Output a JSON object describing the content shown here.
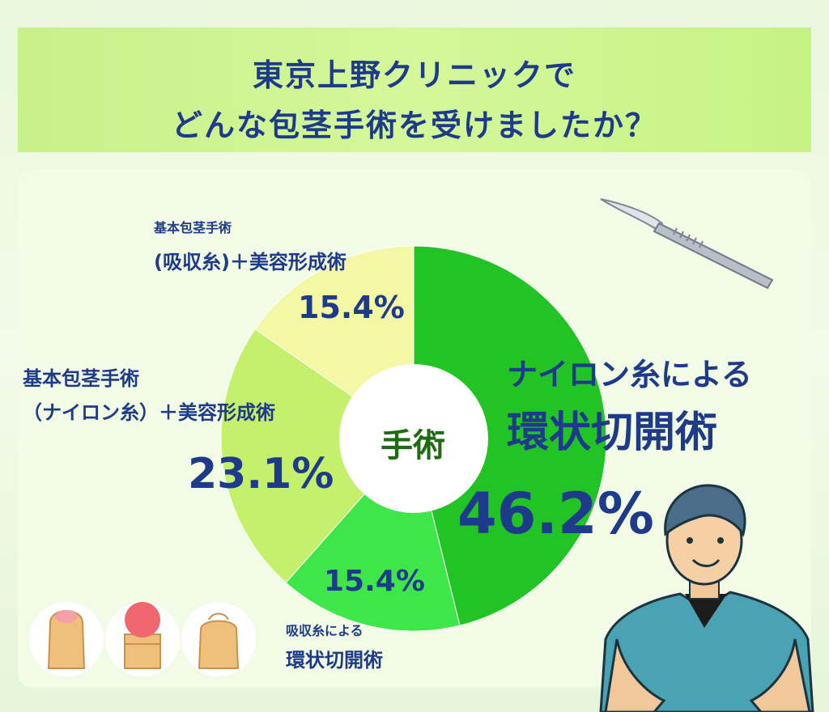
{
  "title": {
    "line1": "東京上野クリニックで",
    "line2": "どんな包茎手術を受けましたか？"
  },
  "chart_data": {
    "type": "pie",
    "center_label": "手術",
    "slices": [
      {
        "label_lines": [
          "ナイロン糸による",
          "環状切開術"
        ],
        "value": 46.2,
        "display": "46.2%",
        "color": "#22c325"
      },
      {
        "label_lines": [
          "吸収糸による",
          "環状切開術"
        ],
        "value": 15.4,
        "display": "15.4%",
        "color": "#3fe64a"
      },
      {
        "label_lines": [
          "基本包茎手術",
          "（ナイロン糸）＋美容形成術"
        ],
        "value": 23.1,
        "display": "23.1%",
        "color": "#c5f06c"
      },
      {
        "label_lines": [
          "基本包茎手術",
          "(吸収糸)＋美容形成術"
        ],
        "value": 15.4,
        "display": "15.4%",
        "color": "#f4f7a4"
      }
    ]
  },
  "icons": [
    "scalpel-icon",
    "doctor-icon",
    "illustration-icon-1",
    "illustration-icon-2",
    "illustration-icon-3"
  ]
}
